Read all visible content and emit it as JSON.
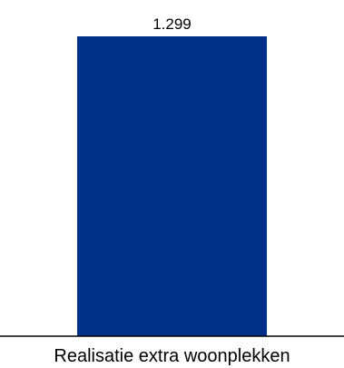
{
  "chart_data": {
    "type": "bar",
    "categories": [
      "Realisatie extra woonplekken"
    ],
    "values": [
      1299
    ],
    "value_labels": [
      "1.299"
    ],
    "title": "",
    "xlabel": "",
    "ylabel": "",
    "ylim": [
      0,
      1299
    ],
    "grid": false,
    "legend": "none",
    "bar_color": "#003087",
    "axis_color": "#000000"
  }
}
